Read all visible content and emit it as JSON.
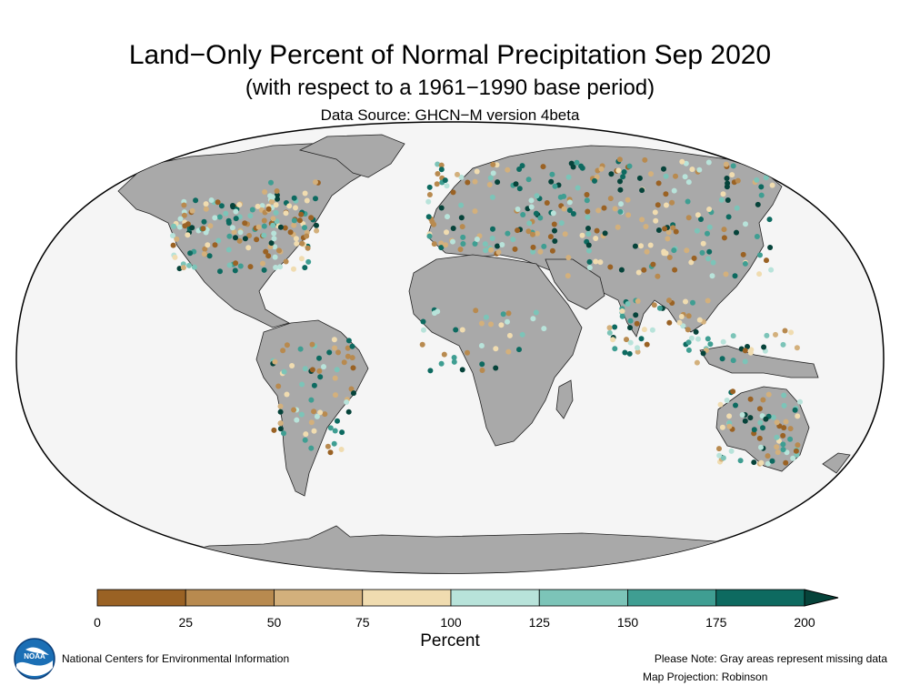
{
  "header": {
    "title": "Land−Only Percent of Normal Precipitation Sep 2020",
    "subtitle": "(with respect to a 1961−1990 base period)",
    "source": "Data Source: GHCN−M version 4beta"
  },
  "colorbar": {
    "label": "Percent",
    "ticks": [
      "0",
      "25",
      "50",
      "75",
      "100",
      "125",
      "150",
      "175",
      "200"
    ],
    "colors": [
      "#9a6224",
      "#b88a4f",
      "#d3b07c",
      "#f0dcb0",
      "#b8e3da",
      "#7cc4b8",
      "#3f9e92",
      "#0d6a60",
      "#06433a"
    ],
    "arrow_color": "#06433a"
  },
  "footer": {
    "agency": "National Centers for Environmental Information",
    "logo_text": "NOAA",
    "note": "Please Note: Gray areas represent missing data",
    "projection": "Map Projection: Robinson"
  },
  "map": {
    "ocean_color": "#f5f5f5",
    "land_color": "#a9a9a9",
    "legend_placement": "bottom"
  }
}
